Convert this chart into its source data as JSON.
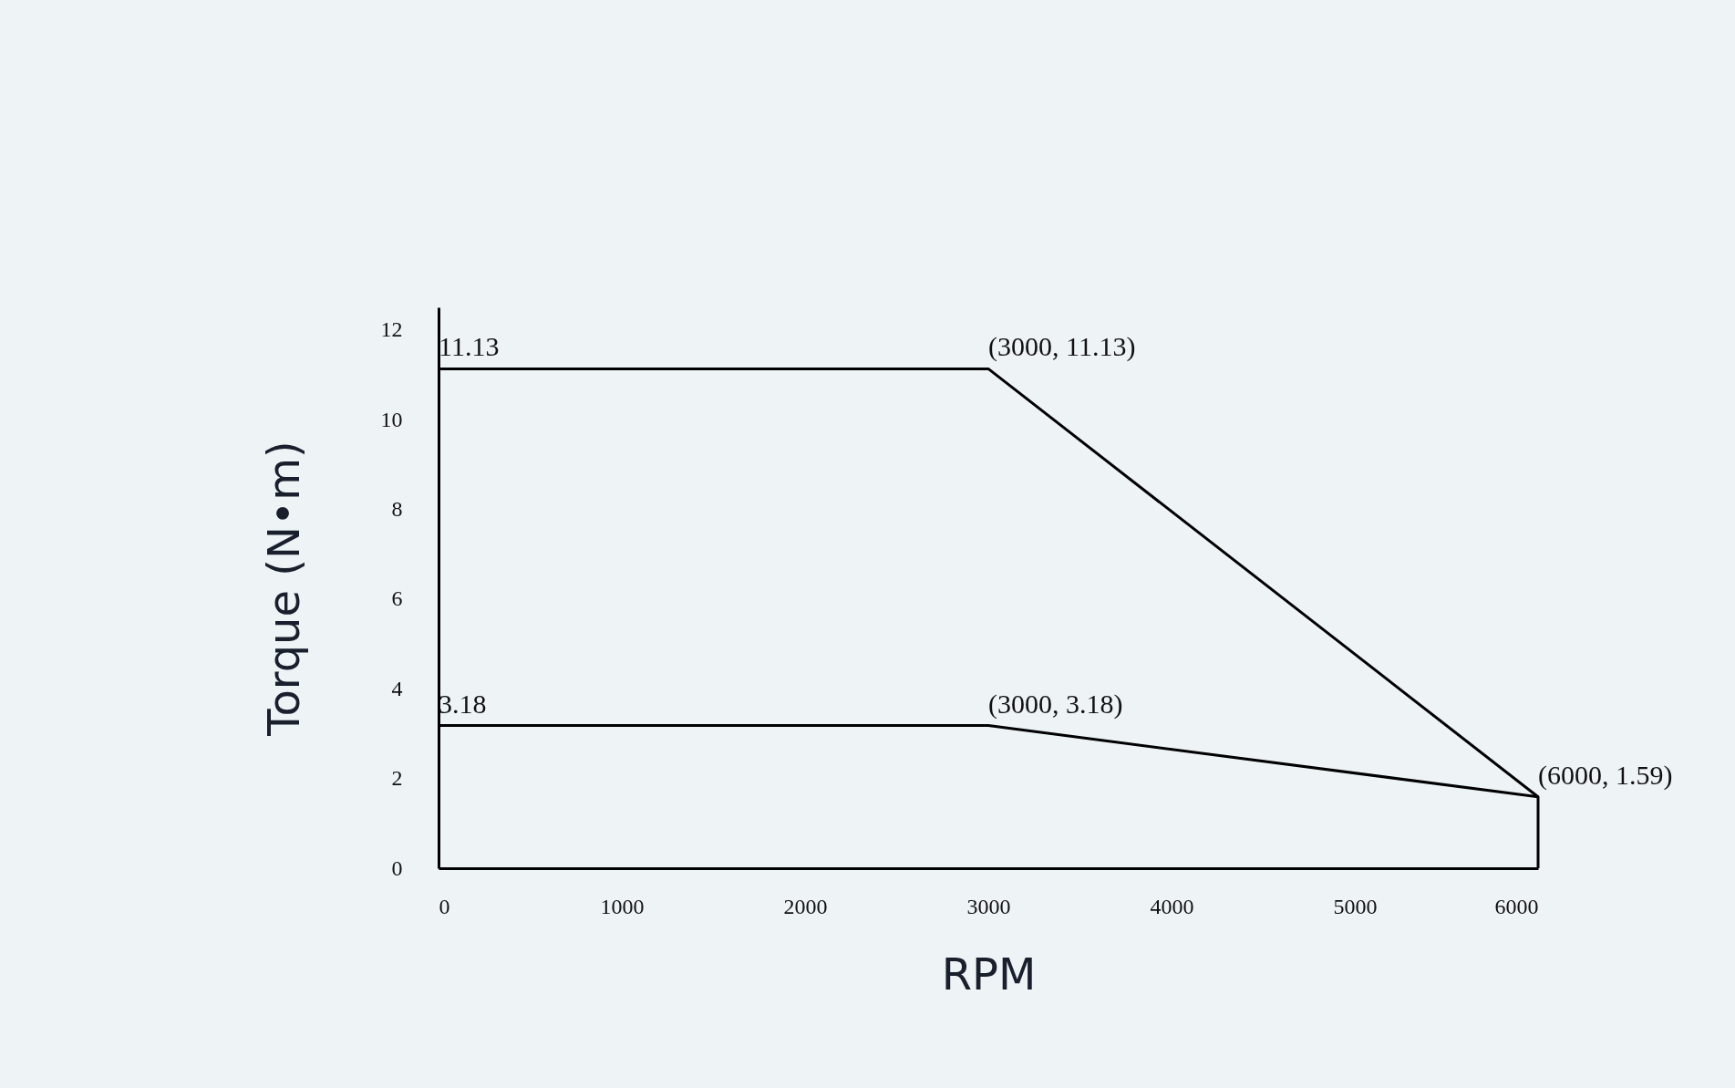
{
  "chart_data": {
    "type": "line",
    "xlabel": "RPM",
    "ylabel": "Torque (N•m)",
    "xlim": [
      0,
      6000
    ],
    "xticks": [
      0,
      1000,
      2000,
      3000,
      4000,
      5000,
      6000
    ],
    "ylim": [
      0,
      12.5
    ],
    "yticks": [
      0,
      2,
      4,
      6,
      8,
      10,
      12
    ],
    "series": [
      {
        "color": "#000000",
        "x": [
          0,
          3000,
          6000,
          6000
        ],
        "values": [
          11.13,
          11.13,
          1.59,
          0
        ]
      },
      {
        "color": "#000000",
        "x": [
          0,
          3000,
          6000
        ],
        "values": [
          3.18,
          3.18,
          1.59
        ]
      }
    ],
    "annotations": [
      {
        "text": "11.13",
        "x": 0,
        "y": 11.13
      },
      {
        "text": "(3000, 11.13)",
        "x": 3000,
        "y": 11.13
      },
      {
        "text": "3.18",
        "x": 0,
        "y": 3.18
      },
      {
        "text": "(3000, 3.18)",
        "x": 3000,
        "y": 3.18
      },
      {
        "text": "(6000, 1.59)",
        "x": 6000,
        "y": 1.59
      }
    ],
    "grid": false,
    "legend": false,
    "marker": "none",
    "line_style": "solid"
  }
}
